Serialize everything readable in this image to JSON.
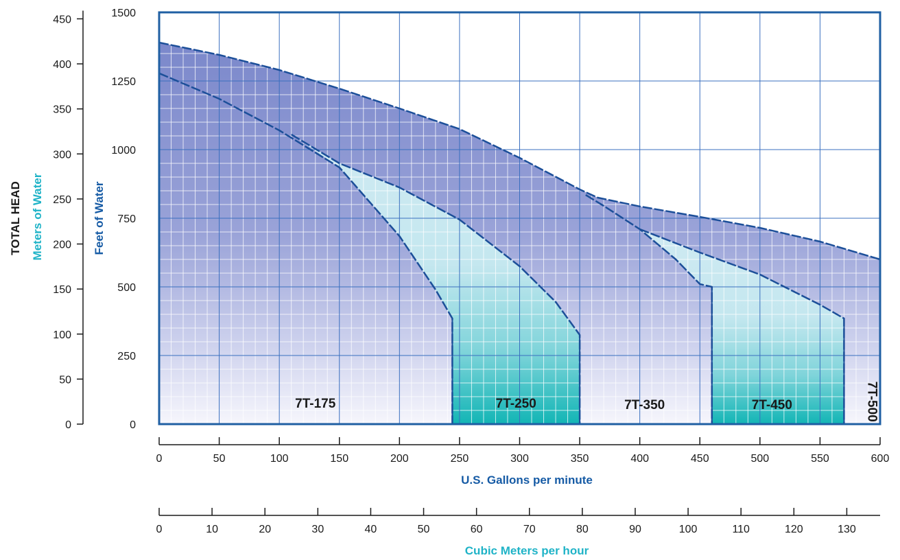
{
  "chart_data": {
    "type": "area",
    "y_feet_axis": {
      "label": "Feet of Water",
      "range": [
        0,
        1500
      ],
      "ticks": [
        0,
        250,
        500,
        750,
        1000,
        1250,
        1500
      ]
    },
    "y_meters_axis": {
      "label": "Meters of Water",
      "range": [
        0,
        457.2
      ],
      "ticks": [
        0,
        50,
        100,
        150,
        200,
        250,
        300,
        350,
        400,
        450
      ]
    },
    "y_group_label": "TOTAL HEAD",
    "x_gpm_axis": {
      "label": "U.S. Gallons per minute",
      "range": [
        0,
        600
      ],
      "ticks": [
        0,
        50,
        100,
        150,
        200,
        250,
        300,
        350,
        400,
        450,
        500,
        550,
        600
      ]
    },
    "x_m3h_axis": {
      "label": "Cubic Meters per hour",
      "range": [
        0,
        136.3
      ],
      "ticks": [
        0,
        10,
        20,
        30,
        40,
        50,
        60,
        70,
        80,
        90,
        100,
        110,
        120,
        130
      ]
    },
    "grid": true,
    "series": [
      {
        "name": "7T-175",
        "points": [
          [
            0,
            1278
          ],
          [
            50,
            1185
          ],
          [
            100,
            1070
          ],
          [
            150,
            935
          ],
          [
            200,
            685
          ],
          [
            230,
            490
          ],
          [
            244,
            385
          ],
          [
            244,
            0
          ]
        ]
      },
      {
        "name": "7T-250",
        "points": [
          [
            110,
            1055
          ],
          [
            150,
            950
          ],
          [
            200,
            862
          ],
          [
            250,
            745
          ],
          [
            300,
            575
          ],
          [
            330,
            445
          ],
          [
            350,
            325
          ],
          [
            350,
            0
          ]
        ]
      },
      {
        "name": "7T-350",
        "points": [
          [
            0,
            1390
          ],
          [
            50,
            1345
          ],
          [
            100,
            1290
          ],
          [
            150,
            1222
          ],
          [
            200,
            1150
          ],
          [
            250,
            1075
          ],
          [
            300,
            970
          ],
          [
            350,
            855
          ],
          [
            365,
            825
          ],
          [
            400,
            793
          ],
          [
            450,
            755
          ],
          [
            500,
            715
          ],
          [
            550,
            665
          ],
          [
            600,
            600
          ]
        ]
      },
      {
        "name": "7T-450",
        "points": [
          [
            355,
            835
          ],
          [
            370,
            795
          ],
          [
            400,
            710
          ],
          [
            430,
            600
          ],
          [
            450,
            510
          ],
          [
            460,
            500
          ],
          [
            460,
            0
          ]
        ]
      },
      {
        "name": "7T-500",
        "points": [
          [
            400,
            710
          ],
          [
            450,
            625
          ],
          [
            500,
            545
          ],
          [
            550,
            435
          ],
          [
            570,
            385
          ],
          [
            570,
            0
          ]
        ]
      }
    ],
    "region_labels": [
      "7T-175",
      "7T-250",
      "7T-350",
      "7T-450",
      "7T-500"
    ],
    "colors": {
      "frame": "#1f5fa3",
      "grid": "#6f8fcd",
      "dark_fill": "#7f8ccd",
      "light_fill": "#c6e7f0",
      "teal": "#14b8b8",
      "meters_label": "#1fb3c7",
      "feet_label": "#165ba5"
    }
  }
}
